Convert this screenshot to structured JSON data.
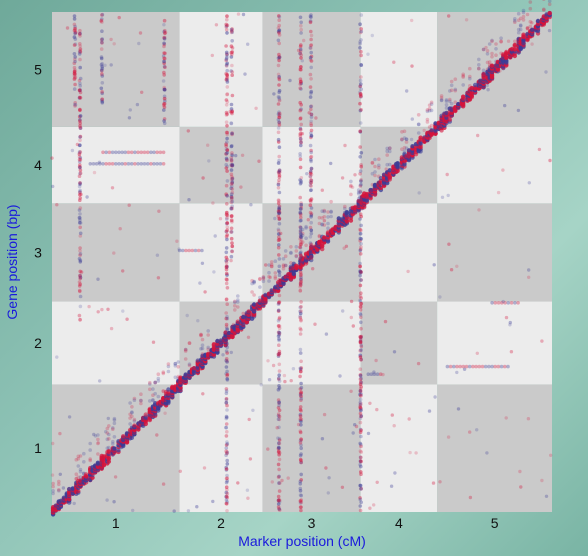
{
  "chart_data": {
    "type": "scatter",
    "title": "",
    "xlabel": "Marker position (cM)",
    "ylabel": "Gene position (bp)",
    "x_chromosomes": [
      {
        "label": "1",
        "start": 0,
        "end": 1.0
      },
      {
        "label": "2",
        "start": 1.0,
        "end": 1.65
      },
      {
        "label": "3",
        "start": 1.65,
        "end": 2.42
      },
      {
        "label": "4",
        "start": 2.42,
        "end": 3.02
      },
      {
        "label": "5",
        "start": 3.02,
        "end": 3.92
      }
    ],
    "y_chromosomes": [
      {
        "label": "1",
        "start": 0,
        "end": 1.0
      },
      {
        "label": "2",
        "start": 1.0,
        "end": 1.65
      },
      {
        "label": "3",
        "start": 1.65,
        "end": 2.42
      },
      {
        "label": "4",
        "start": 2.42,
        "end": 3.02
      },
      {
        "label": "5",
        "start": 3.02,
        "end": 3.92
      }
    ],
    "diagonal_segments": [
      {
        "x": [
          0.0,
          1.0
        ],
        "y": [
          0.0,
          1.0
        ]
      },
      {
        "x": [
          1.0,
          1.65
        ],
        "y": [
          1.0,
          1.65
        ]
      },
      {
        "x": [
          1.65,
          2.42
        ],
        "y": [
          1.65,
          2.42
        ]
      },
      {
        "x": [
          2.42,
          3.02
        ],
        "y": [
          2.42,
          3.02
        ]
      },
      {
        "x": [
          3.02,
          3.92
        ],
        "y": [
          3.02,
          3.92
        ]
      }
    ],
    "trans_columns": [
      {
        "x": 0.18,
        "y_range": [
          3.1,
          3.9
        ]
      },
      {
        "x": 0.22,
        "y_range": [
          1.5,
          3.8
        ]
      },
      {
        "x": 0.39,
        "y_range": [
          3.2,
          3.9
        ]
      },
      {
        "x": 0.88,
        "y_range": [
          3.0,
          3.9
        ]
      },
      {
        "x": 1.37,
        "y_range": [
          0.0,
          3.9
        ]
      },
      {
        "x": 1.41,
        "y_range": [
          2.0,
          3.8
        ]
      },
      {
        "x": 1.78,
        "y_range": [
          0.0,
          3.9
        ]
      },
      {
        "x": 1.95,
        "y_range": [
          0.0,
          3.9
        ]
      },
      {
        "x": 2.03,
        "y_range": [
          2.0,
          3.9
        ]
      },
      {
        "x": 2.42,
        "y_range": [
          0.0,
          3.9
        ]
      }
    ],
    "trans_rows": [
      {
        "y": 1.64,
        "x_range": [
          3.45,
          3.68
        ]
      },
      {
        "y": 1.14,
        "x_range": [
          3.1,
          3.6
        ]
      },
      {
        "y": 2.82,
        "x_range": [
          0.4,
          0.9
        ]
      },
      {
        "y": 2.73,
        "x_range": [
          0.3,
          0.9
        ]
      },
      {
        "y": 1.08,
        "x_range": [
          2.48,
          2.6
        ]
      },
      {
        "y": 2.05,
        "x_range": [
          1.0,
          1.2
        ]
      }
    ],
    "colors": {
      "panel_dark": "#cacaca",
      "panel_light": "#ececec",
      "point_red": "#d4143c",
      "point_blue": "#3c3c96",
      "axis_title": "#1a1adc"
    },
    "grid": false,
    "legend": "none"
  }
}
